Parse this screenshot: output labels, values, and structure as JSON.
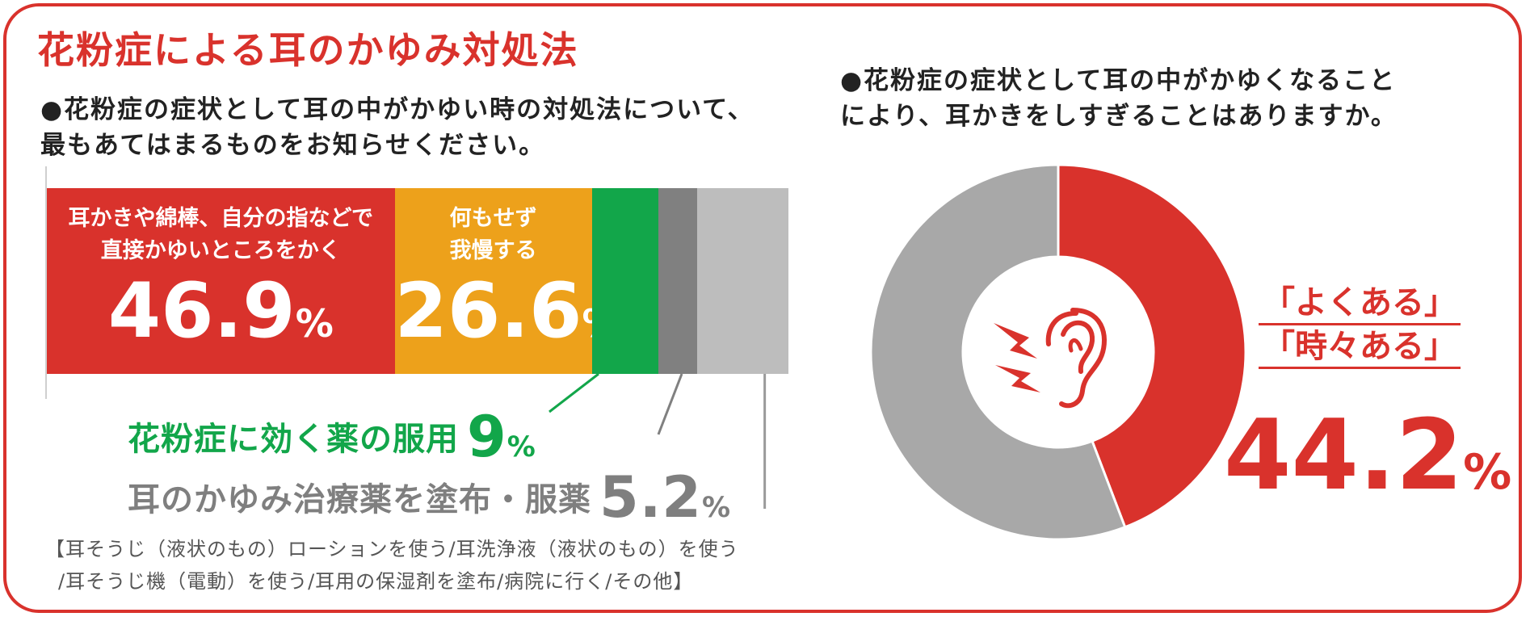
{
  "title": "花粉症による耳のかゆみ対処法",
  "colors": {
    "accent": "#d9322c",
    "orange": "#eda11b",
    "green": "#12a64a",
    "dark_gray": "#808080",
    "light_gray": "#bdbdbd",
    "donut_gray": "#a8a8a8"
  },
  "left": {
    "question_line1": "●花粉症の症状として耳の中がかゆい時の対処法について、",
    "question_line2": "最もあてはまるものをお知らせください。",
    "seg1_label_line1": "耳かきや綿棒、自分の指などで",
    "seg1_label_line2": "直接かゆいところをかく",
    "seg1_value": "46.9",
    "seg2_label_line1": "何もせず",
    "seg2_label_line2": "我慢する",
    "seg2_value": "26.6",
    "seg3_label": "花粉症に効く薬の服用",
    "seg3_value": "9",
    "seg4_label": "耳のかゆみ治療薬を塗布・服薬",
    "seg4_value": "5.2",
    "pct": "%",
    "note_line1": "【耳そうじ（液状のもの）ローションを使う/耳洗浄液（液状のもの）を使う",
    "note_line2": "/耳そうじ機（電動）を使う/耳用の保湿剤を塗布/病院に行く/その他】"
  },
  "right": {
    "question_line1": "●花粉症の症状として耳の中がかゆくなること",
    "question_line2": "により、耳かきをしすぎることはありますか。",
    "label_line1": "「よくある」",
    "label_line2": "「時々ある」",
    "value": "44.2",
    "pct": "%",
    "icon": "ear-itch-icon"
  },
  "chart_data": [
    {
      "type": "bar",
      "orientation": "horizontal-stacked",
      "title": "●花粉症の症状として耳の中がかゆい時の対処法について、最もあてはまるものをお知らせください。",
      "unit": "%",
      "segments": [
        {
          "name": "耳かきや綿棒、自分の指などで直接かゆいところをかく",
          "value": 46.9,
          "color": "#d9322c"
        },
        {
          "name": "何もせず我慢する",
          "value": 26.6,
          "color": "#eda11b"
        },
        {
          "name": "花粉症に効く薬の服用",
          "value": 9,
          "color": "#12a64a"
        },
        {
          "name": "耳のかゆみ治療薬を塗布・服薬",
          "value": 5.2,
          "color": "#808080"
        },
        {
          "name": "【耳そうじ（液状のもの）ローションを使う/耳洗浄液（液状のもの）を使う/耳そうじ機（電動）を使う/耳用の保湿剤を塗布/病院に行く/その他】",
          "value": 12.3,
          "color": "#bdbdbd"
        }
      ]
    },
    {
      "type": "pie",
      "style": "donut",
      "title": "●花粉症の症状として耳の中がかゆくなることにより、耳かきをしすぎることはありますか。",
      "unit": "%",
      "slices": [
        {
          "name": "「よくある」「時々ある」",
          "value": 44.2,
          "color": "#d9322c"
        },
        {
          "name": "",
          "value": 55.8,
          "color": "#a8a8a8"
        }
      ]
    }
  ]
}
